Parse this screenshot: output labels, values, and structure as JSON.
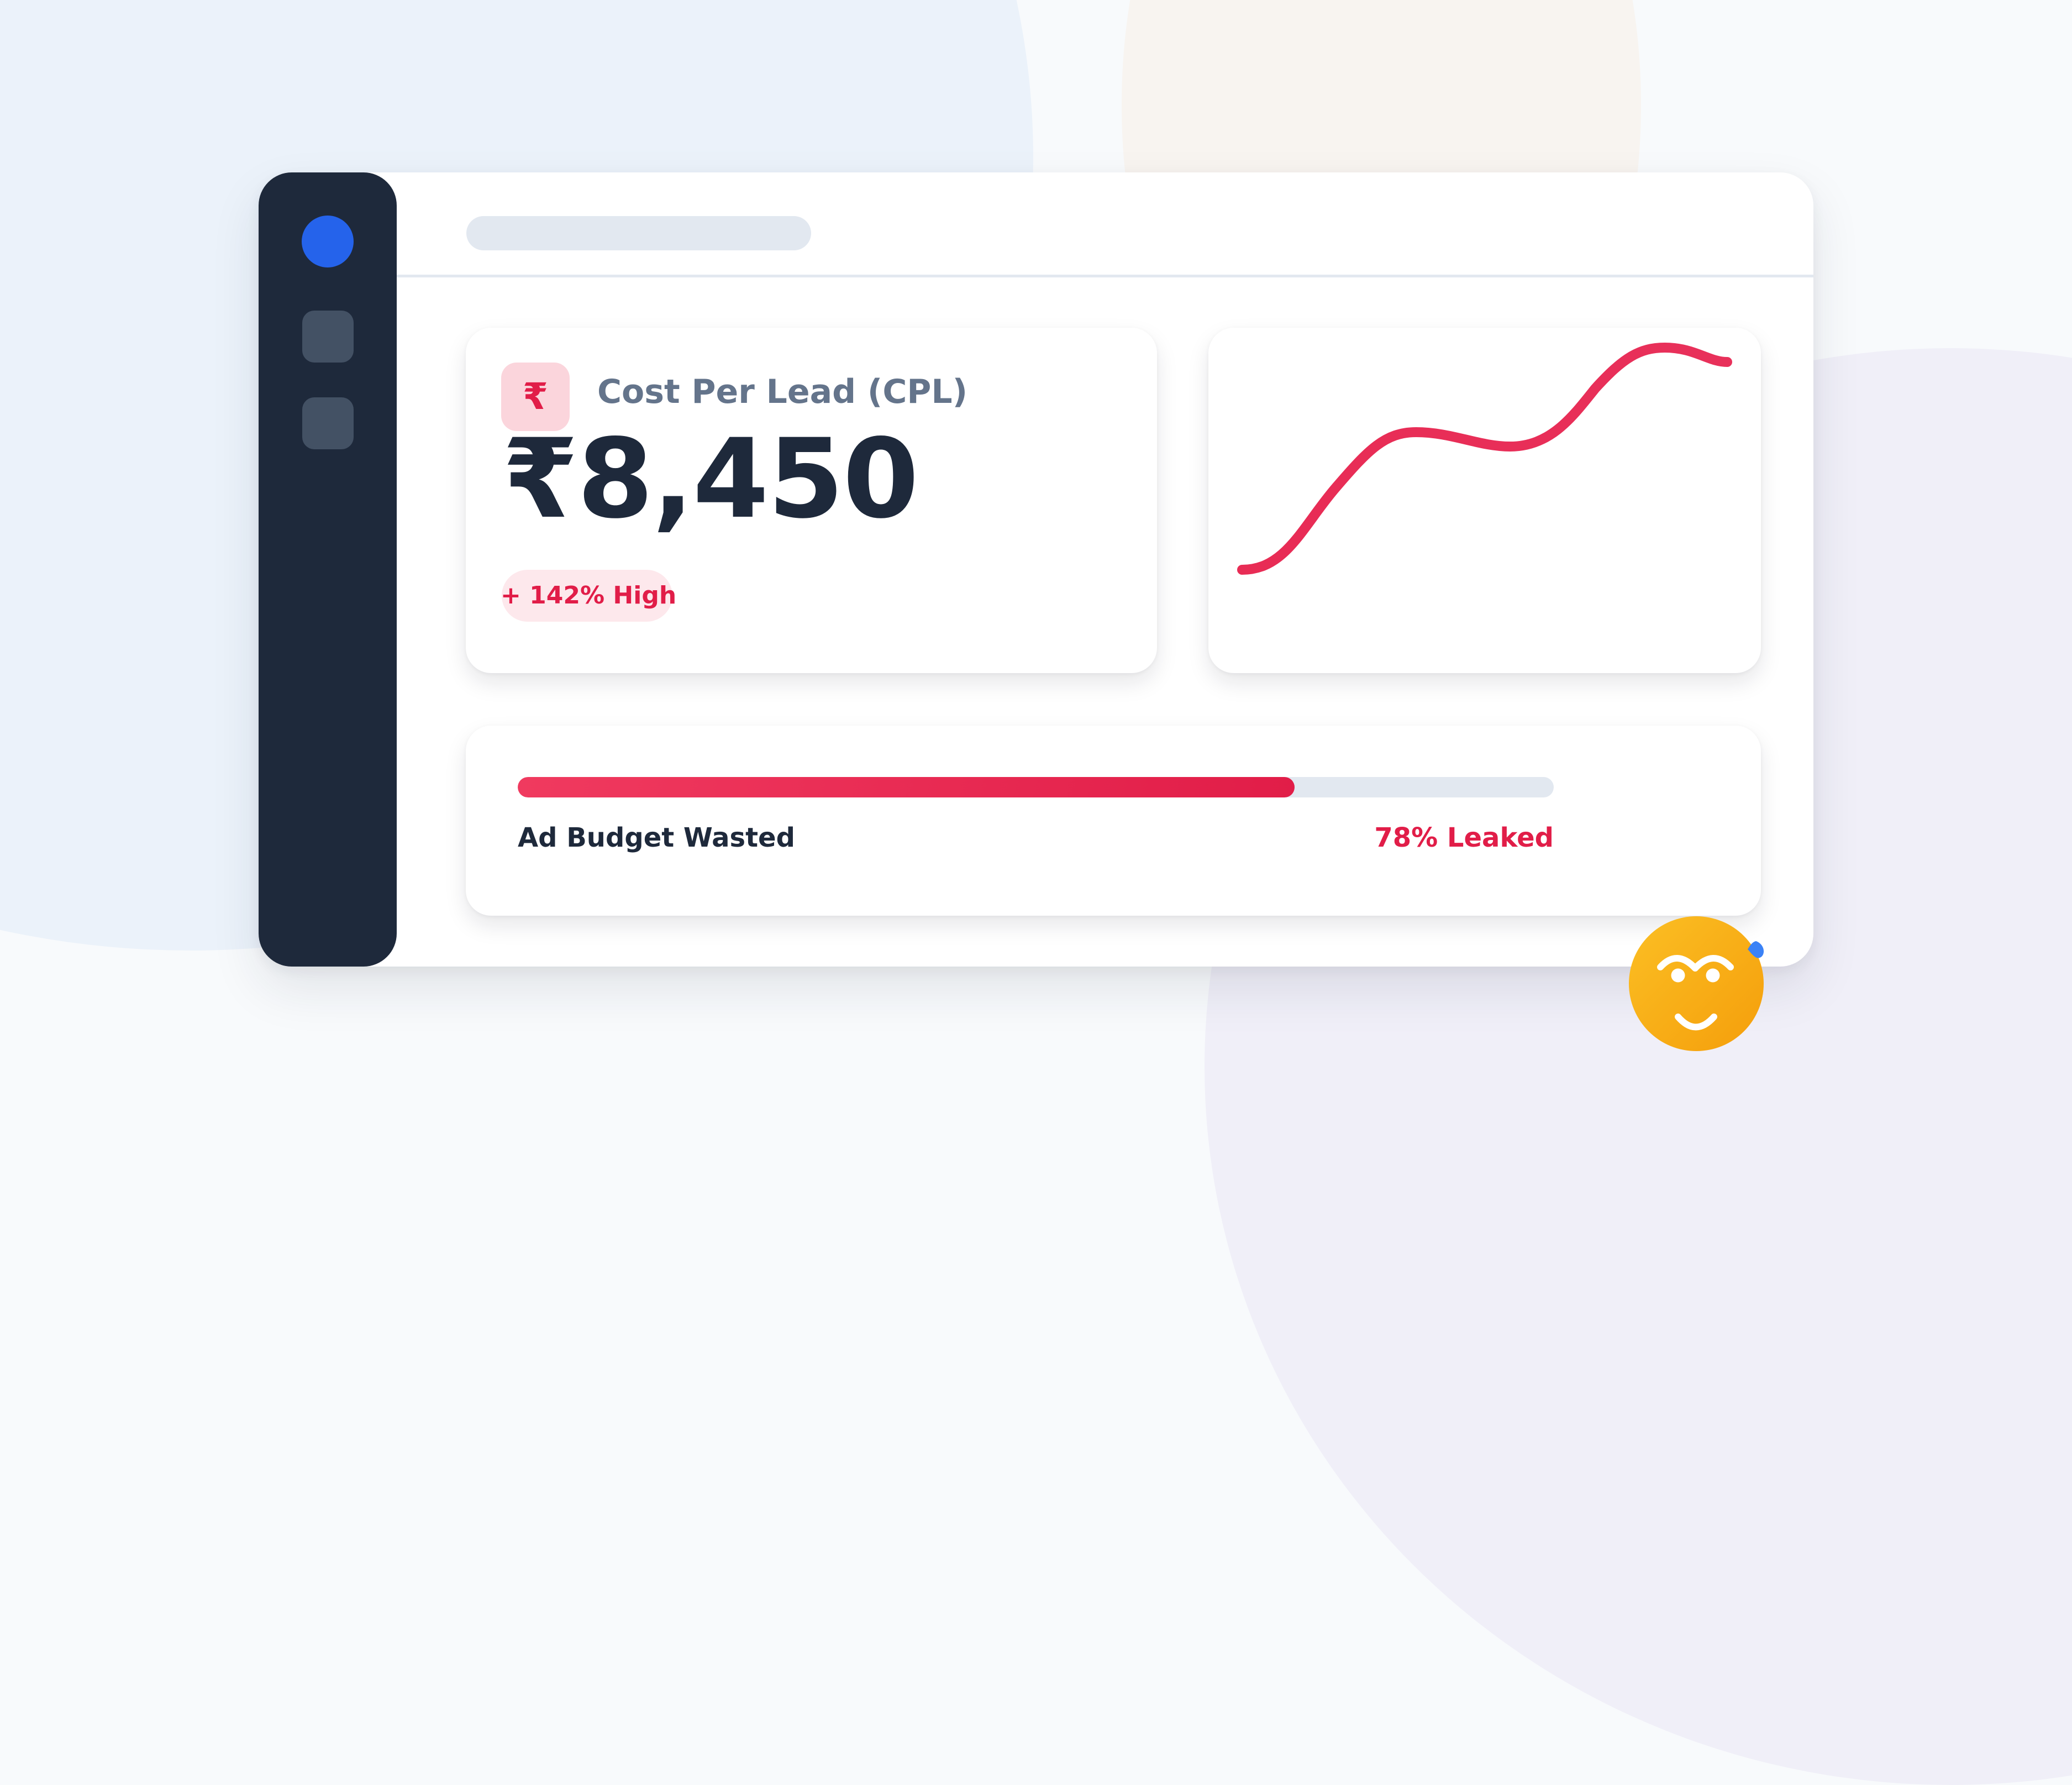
{
  "colors": {
    "background": "#f8fafc",
    "sidebar": "#1e293b",
    "accent_blue": "#2563eb",
    "danger": "#e11d48",
    "line": "#ea2e55",
    "text_dark": "#1e293b",
    "text_muted": "#64748b",
    "track": "#e2e8f0",
    "emoji": "#f7ab16"
  },
  "sidebar": {
    "items": [
      {
        "type": "active-dot",
        "icon": "circle-icon"
      },
      {
        "type": "nav-item",
        "icon": "placeholder-square-icon"
      },
      {
        "type": "nav-item",
        "icon": "placeholder-square-icon"
      }
    ]
  },
  "header": {
    "search_placeholder": ""
  },
  "cpl_card": {
    "icon": "rupee-icon",
    "icon_glyph": "₹",
    "title": "Cost Per Lead (CPL)",
    "value": "₹8,450",
    "change_badge": "+ 142% High"
  },
  "trend_card": {
    "icon": "trend-line",
    "line_color": "#ea2e55"
  },
  "budget_card": {
    "label": "Ad Budget Wasted",
    "status": "78% Leaked",
    "percent": 78,
    "emoji": "sweating-face-icon"
  },
  "chart_data": {
    "type": "line",
    "title": "",
    "xlabel": "",
    "ylabel": "",
    "grid": false,
    "legend": null,
    "x": [
      0,
      1,
      2,
      3,
      4
    ],
    "values": [
      10,
      63,
      57,
      96,
      91
    ],
    "ylim": [
      0,
      100
    ],
    "note": "Unlabeled sparkline showing rising cost trend; values estimated relative to card height"
  }
}
